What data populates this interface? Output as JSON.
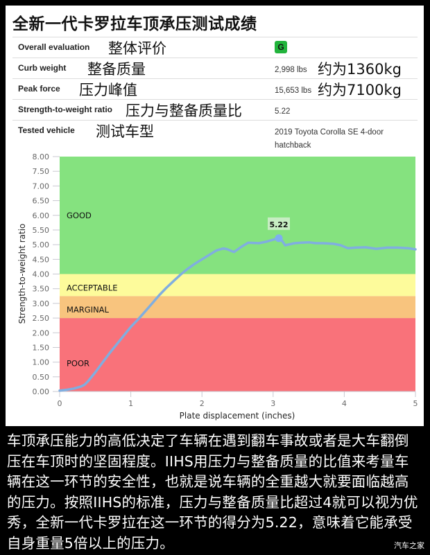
{
  "title": "全新一代卡罗拉车顶承压测试成绩",
  "specs": {
    "overall": {
      "label": "Overall evaluation",
      "cn": "整体评价",
      "value": "G",
      "badge_color": "#22b43c"
    },
    "curb": {
      "label": "Curb weight",
      "cn": "整备质量",
      "value": "2,998 lbs",
      "value_cn": "约为1360kg"
    },
    "peak": {
      "label": "Peak force",
      "cn": "压力峰值",
      "value": "15,653 lbs",
      "value_cn": "约为7100kg"
    },
    "ratio": {
      "label": "Strength-to-weight ratio",
      "cn": "压力与整备质量比",
      "value": "5.22"
    },
    "vehicle": {
      "label": "Tested vehicle",
      "cn": "测试车型",
      "value_line1": "2019 Toyota Corolla SE 4-door",
      "value_line2": "hatchback"
    }
  },
  "chart_data": {
    "type": "line",
    "title": "",
    "xlabel": "Plate displacement (inches)",
    "ylabel": "Strength-to-weight ratio",
    "xlim": [
      0,
      5
    ],
    "ylim": [
      0,
      8
    ],
    "x_ticks": [
      "0",
      "1",
      "2",
      "3",
      "4",
      "5"
    ],
    "y_ticks": [
      "0.00",
      "0.50",
      "1.00",
      "1.50",
      "2.00",
      "2.50",
      "3.00",
      "3.50",
      "4.00",
      "4.50",
      "5.00",
      "5.50",
      "6.00",
      "6.50",
      "7.00",
      "7.50",
      "8.00"
    ],
    "bands": [
      {
        "label": "POOR",
        "from": 0,
        "to": 2.5,
        "color": "#f9727a"
      },
      {
        "label": "MARGINAL",
        "from": 2.5,
        "to": 3.25,
        "color": "#f8c47e"
      },
      {
        "label": "ACCEPTABLE",
        "from": 3.25,
        "to": 4.0,
        "color": "#fdfb9b"
      },
      {
        "label": "GOOD",
        "from": 4.0,
        "to": 8.0,
        "color": "#85e27f"
      }
    ],
    "series": [
      {
        "name": "Corolla",
        "color": "#80aee0",
        "x": [
          0,
          0.1,
          0.2,
          0.3,
          0.35,
          0.4,
          0.5,
          0.6,
          0.7,
          0.8,
          0.9,
          1.0,
          1.1,
          1.2,
          1.3,
          1.4,
          1.5,
          1.6,
          1.7,
          1.8,
          1.9,
          2.0,
          2.1,
          2.2,
          2.3,
          2.35,
          2.45,
          2.55,
          2.65,
          2.8,
          2.9,
          3.0,
          3.08,
          3.12,
          3.17,
          3.3,
          3.4,
          3.5,
          3.6,
          3.7,
          3.85,
          3.95,
          4.05,
          4.15,
          4.3,
          4.45,
          4.6,
          4.75,
          4.9,
          5.0
        ],
        "y": [
          0.03,
          0.06,
          0.1,
          0.17,
          0.23,
          0.35,
          0.65,
          0.98,
          1.3,
          1.6,
          1.9,
          2.2,
          2.45,
          2.72,
          3.0,
          3.28,
          3.53,
          3.76,
          3.98,
          4.18,
          4.35,
          4.5,
          4.65,
          4.8,
          4.87,
          4.85,
          4.75,
          4.92,
          5.07,
          5.05,
          5.1,
          5.17,
          5.22,
          5.15,
          4.98,
          5.05,
          5.07,
          5.08,
          5.05,
          5.05,
          5.03,
          4.98,
          4.88,
          4.9,
          4.91,
          4.86,
          4.9,
          4.9,
          4.88,
          4.84
        ]
      }
    ],
    "annotation": {
      "label": "5.22",
      "x": 3.08,
      "y": 5.22
    },
    "grid": false,
    "legend": "none"
  },
  "caption": "车顶承压能力的高低决定了车辆在遇到翻车事故或者是大车翻倒压在车顶时的坚固程度。IIHS用压力与整备质量的比值来考量车辆在这一环节的安全性，也就是说车辆的全重越大就要面临越高的压力。按照IIHS的标准，压力与整备质量比超过4就可以视为优秀，全新一代卡罗拉在这一环节的得分为5.22，意味着它能承受自身重量5倍以上的压力。",
  "watermark": "汽车之家"
}
